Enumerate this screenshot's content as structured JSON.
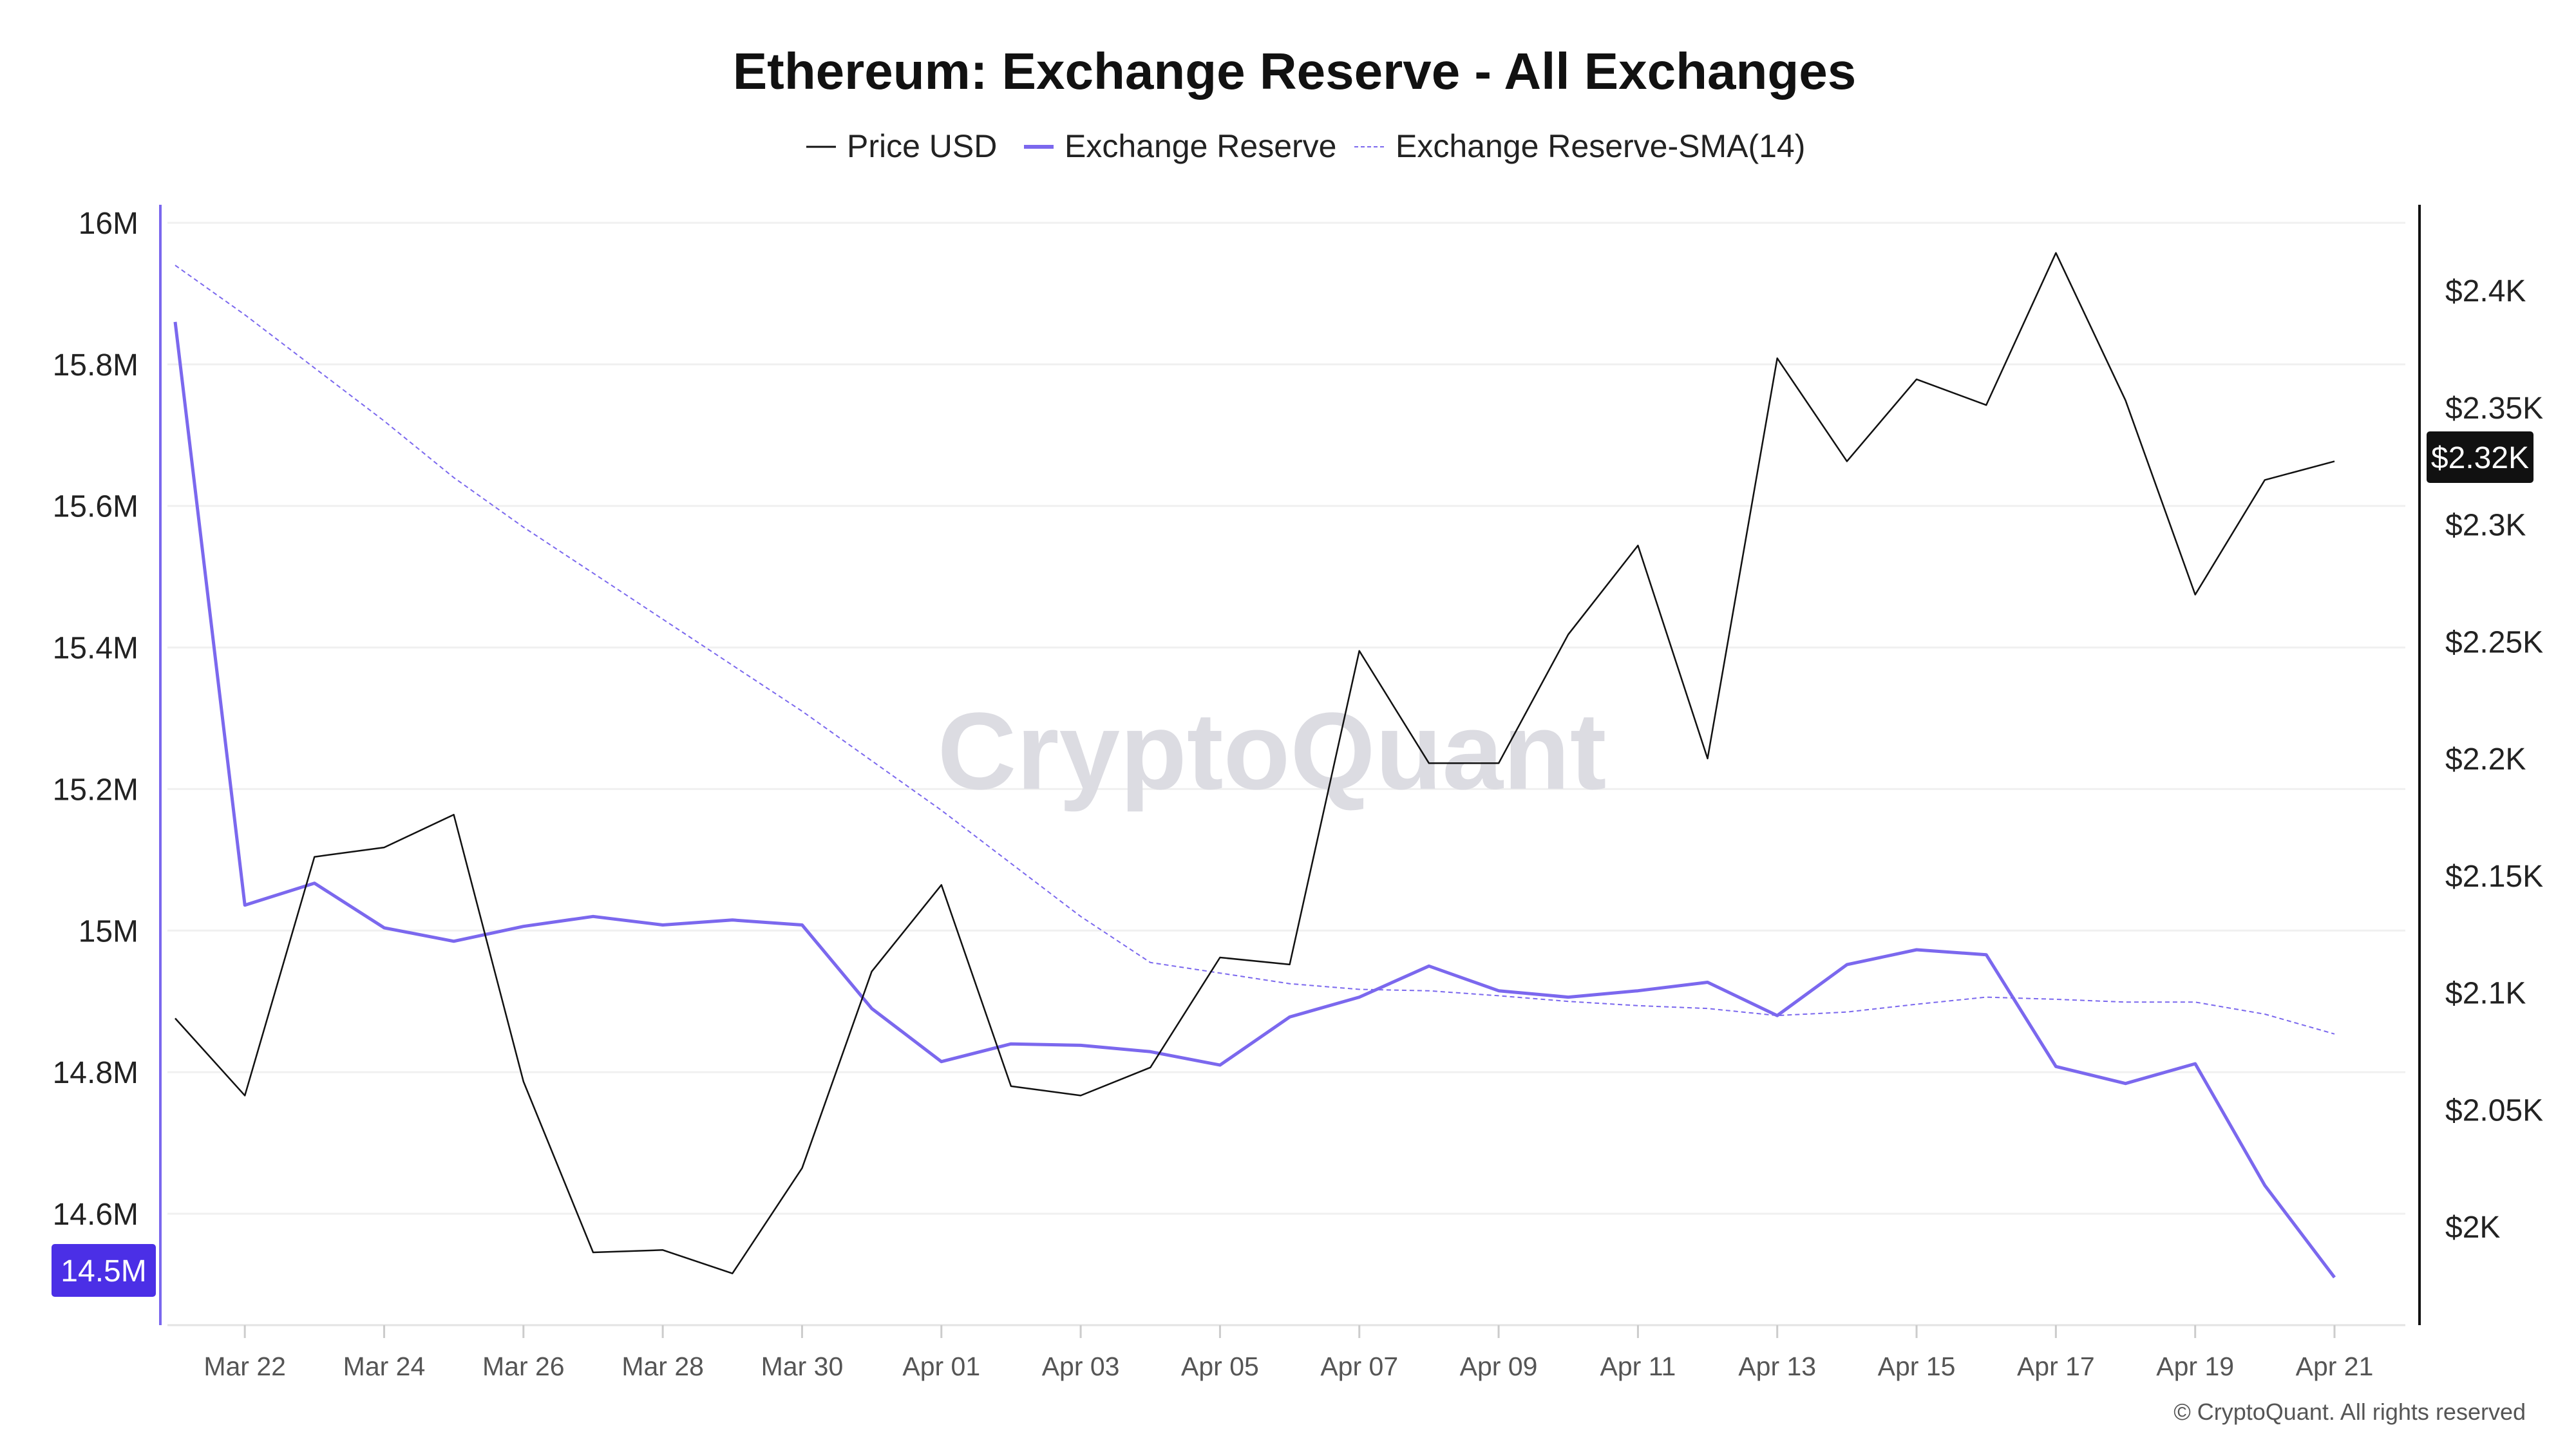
{
  "chart_data": {
    "type": "line",
    "title": "Ethereum: Exchange Reserve - All Exchanges",
    "legend": [
      "Price USD",
      "Exchange Reserve",
      "Exchange Reserve-SMA(14)"
    ],
    "legend_position": "top-center",
    "x": [
      "Mar 21",
      "Mar 22",
      "Mar 23",
      "Mar 24",
      "Mar 25",
      "Mar 26",
      "Mar 27",
      "Mar 28",
      "Mar 29",
      "Mar 30",
      "Mar 31",
      "Apr 01",
      "Apr 02",
      "Apr 03",
      "Apr 04",
      "Apr 05",
      "Apr 06",
      "Apr 07",
      "Apr 08",
      "Apr 09",
      "Apr 10",
      "Apr 11",
      "Apr 12",
      "Apr 13",
      "Apr 14",
      "Apr 15",
      "Apr 16",
      "Apr 17",
      "Apr 18",
      "Apr 19",
      "Apr 20",
      "Apr 21"
    ],
    "x_tick_labels": [
      "Mar 22",
      "Mar 24",
      "Mar 26",
      "Mar 28",
      "Mar 30",
      "Apr 01",
      "Apr 03",
      "Apr 05",
      "Apr 07",
      "Apr 09",
      "Apr 11",
      "Apr 13",
      "Apr 15",
      "Apr 17",
      "Apr 19",
      "Apr 21"
    ],
    "series": [
      {
        "name": "Price USD",
        "axis": "right",
        "color": "#111111",
        "values": [
          2089,
          2056,
          2158,
          2162,
          2176,
          2062,
          1989,
          1990,
          1980,
          2025,
          2109,
          2146,
          2060,
          2056,
          2068,
          2115,
          2112,
          2246,
          2198,
          2198,
          2253,
          2291,
          2200,
          2371,
          2327,
          2362,
          2351,
          2416,
          2353,
          2270,
          2319,
          2327
        ]
      },
      {
        "name": "Exchange Reserve",
        "axis": "left",
        "color": "#7b68ee",
        "values": [
          15.86,
          15.036,
          15.067,
          15.004,
          14.985,
          15.006,
          15.02,
          15.008,
          15.015,
          15.008,
          14.89,
          14.815,
          14.84,
          14.838,
          14.829,
          14.81,
          14.878,
          14.906,
          14.95,
          14.915,
          14.906,
          14.915,
          14.927,
          14.88,
          14.952,
          14.973,
          14.966,
          14.808,
          14.784,
          14.812,
          14.64,
          14.51
        ]
      },
      {
        "name": "Exchange Reserve-SMA(14)",
        "axis": "left",
        "color": "#7b68ee",
        "dashed": true,
        "values": [
          15.94,
          15.87,
          15.795,
          15.72,
          15.64,
          15.57,
          15.505,
          15.44,
          15.375,
          15.31,
          15.24,
          15.17,
          15.095,
          15.02,
          14.955,
          14.94,
          14.925,
          14.917,
          14.915,
          14.908,
          14.9,
          14.894,
          14.89,
          14.88,
          14.885,
          14.896,
          14.906,
          14.903,
          14.899,
          14.899,
          14.882,
          14.854
        ]
      }
    ],
    "left_axis": {
      "ticks": [
        "16M",
        "15.8M",
        "15.6M",
        "15.4M",
        "15.2M",
        "15M",
        "14.8M",
        "14.6M"
      ],
      "tick_values": [
        16,
        15.8,
        15.6,
        15.4,
        15.2,
        15,
        14.8,
        14.6
      ],
      "ylim": [
        14.43,
        16.02
      ],
      "unit": "M"
    },
    "right_axis": {
      "ticks": [
        "$2.4K",
        "$2.35K",
        "$2.3K",
        "$2.25K",
        "$2.2K",
        "$2.15K",
        "$2.1K",
        "$2.05K",
        "$2K"
      ],
      "tick_values": [
        2400,
        2350,
        2300,
        2250,
        2200,
        2150,
        2100,
        2050,
        2000
      ],
      "ylim": [
        1960,
        2430
      ]
    },
    "left_current_label": "14.5M",
    "right_current_label": "$2.32K",
    "grid": true,
    "watermark": "CryptoQuant",
    "copyright": "© CryptoQuant. All rights reserved"
  }
}
